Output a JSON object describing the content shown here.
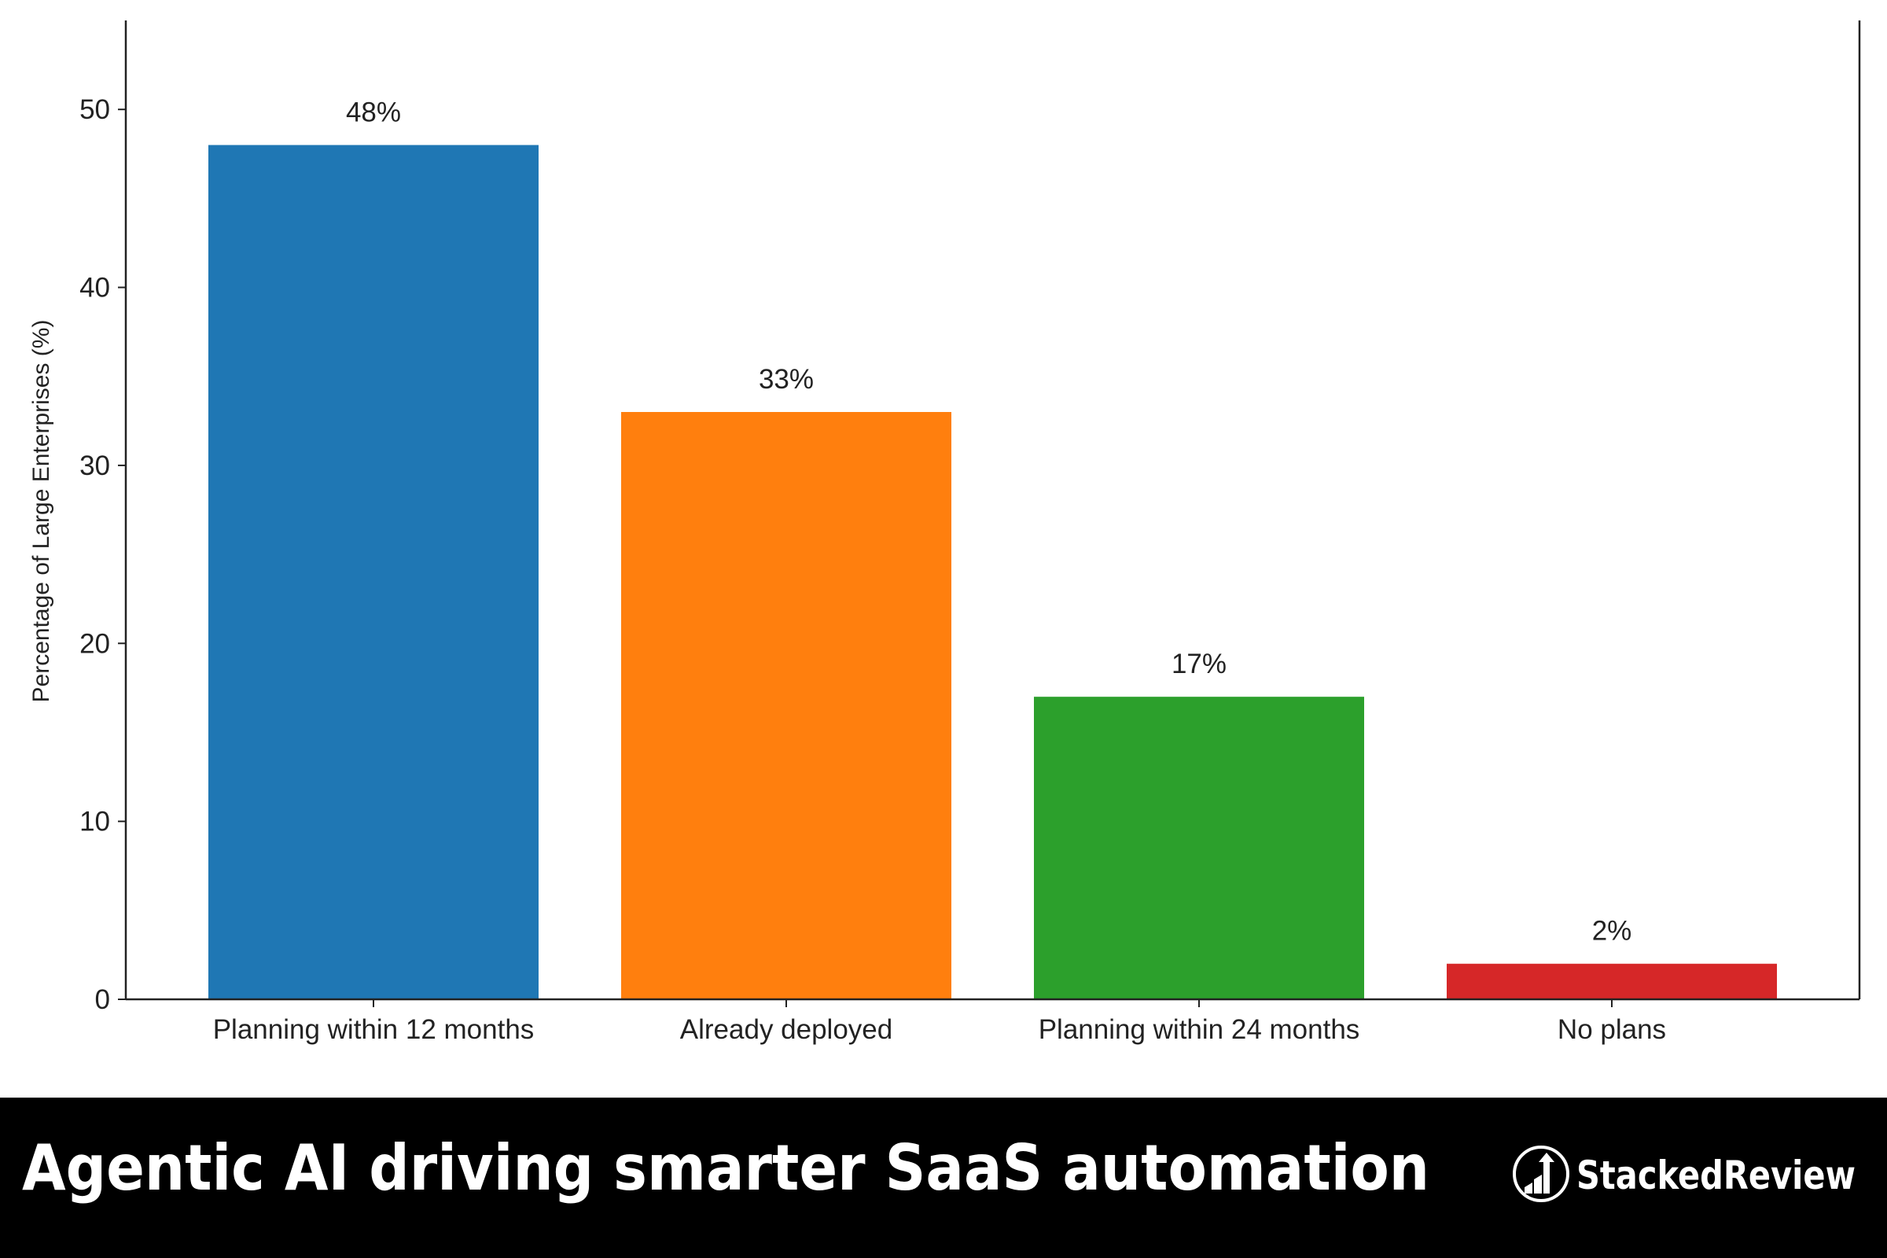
{
  "chart_data": {
    "type": "bar",
    "title": "",
    "xlabel": "",
    "ylabel": "Percentage of Large Enterprises (%)",
    "categories": [
      "Planning within 12 months",
      "Already deployed",
      "Planning within 24 months",
      "No plans"
    ],
    "values": [
      48,
      33,
      17,
      2
    ],
    "data_labels": [
      "48%",
      "33%",
      "17%",
      "2%"
    ],
    "colors": [
      "#1f77b4",
      "#ff7f0e",
      "#2ca02c",
      "#d62728"
    ],
    "ylim": [
      0,
      55
    ],
    "yticks": [
      0,
      10,
      20,
      30,
      40,
      50
    ],
    "grid": false,
    "legend": "none"
  },
  "banner": {
    "title": "Agentic AI driving smarter SaaS automation",
    "background": "#000000",
    "brand_name": "StackedReview",
    "brand_icon": "rising-bars-arrow-icon"
  }
}
